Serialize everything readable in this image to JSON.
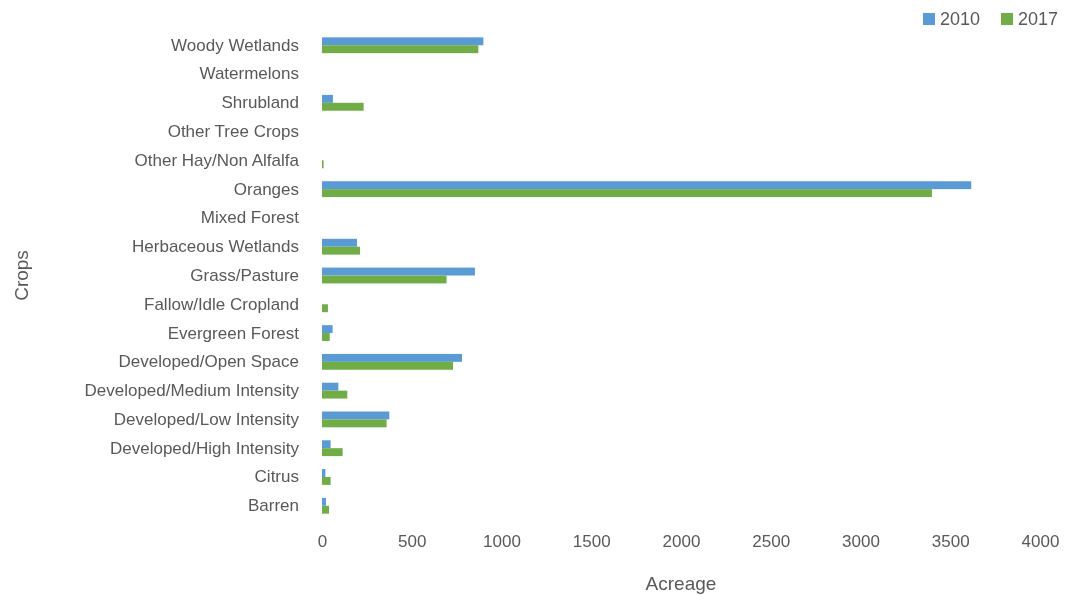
{
  "chart_data": {
    "type": "bar",
    "orientation": "horizontal",
    "xlabel": "Acreage",
    "ylabel": "Crops",
    "categories": [
      "Woody Wetlands",
      "Watermelons",
      "Shrubland",
      "Other Tree Crops",
      "Other Hay/Non Alfalfa",
      "Oranges",
      "Mixed Forest",
      "Herbaceous Wetlands",
      "Grass/Pasture",
      "Fallow/Idle Cropland",
      "Evergreen Forest",
      "Developed/Open Space",
      "Developed/Medium Intensity",
      "Developed/Low Intensity",
      "Developed/High Intensity",
      "Citrus",
      "Barren"
    ],
    "series": [
      {
        "name": "2010",
        "color": "#5b9bd5",
        "values": [
          899,
          null,
          61,
          null,
          null,
          3617,
          null,
          195,
          852,
          null,
          59,
          780,
          91,
          375,
          48,
          19,
          22
        ]
      },
      {
        "name": "2017",
        "color": "#70ad47",
        "values": [
          871,
          null,
          232,
          null,
          9,
          3398,
          null,
          212,
          694,
          33,
          43,
          730,
          141,
          360,
          115,
          48,
          39
        ]
      }
    ],
    "xlim": [
      0,
      4000
    ],
    "xticks": [
      0,
      500,
      1000,
      1500,
      2000,
      2500,
      3000,
      3500,
      4000
    ],
    "grid": false,
    "legend": "top right"
  }
}
